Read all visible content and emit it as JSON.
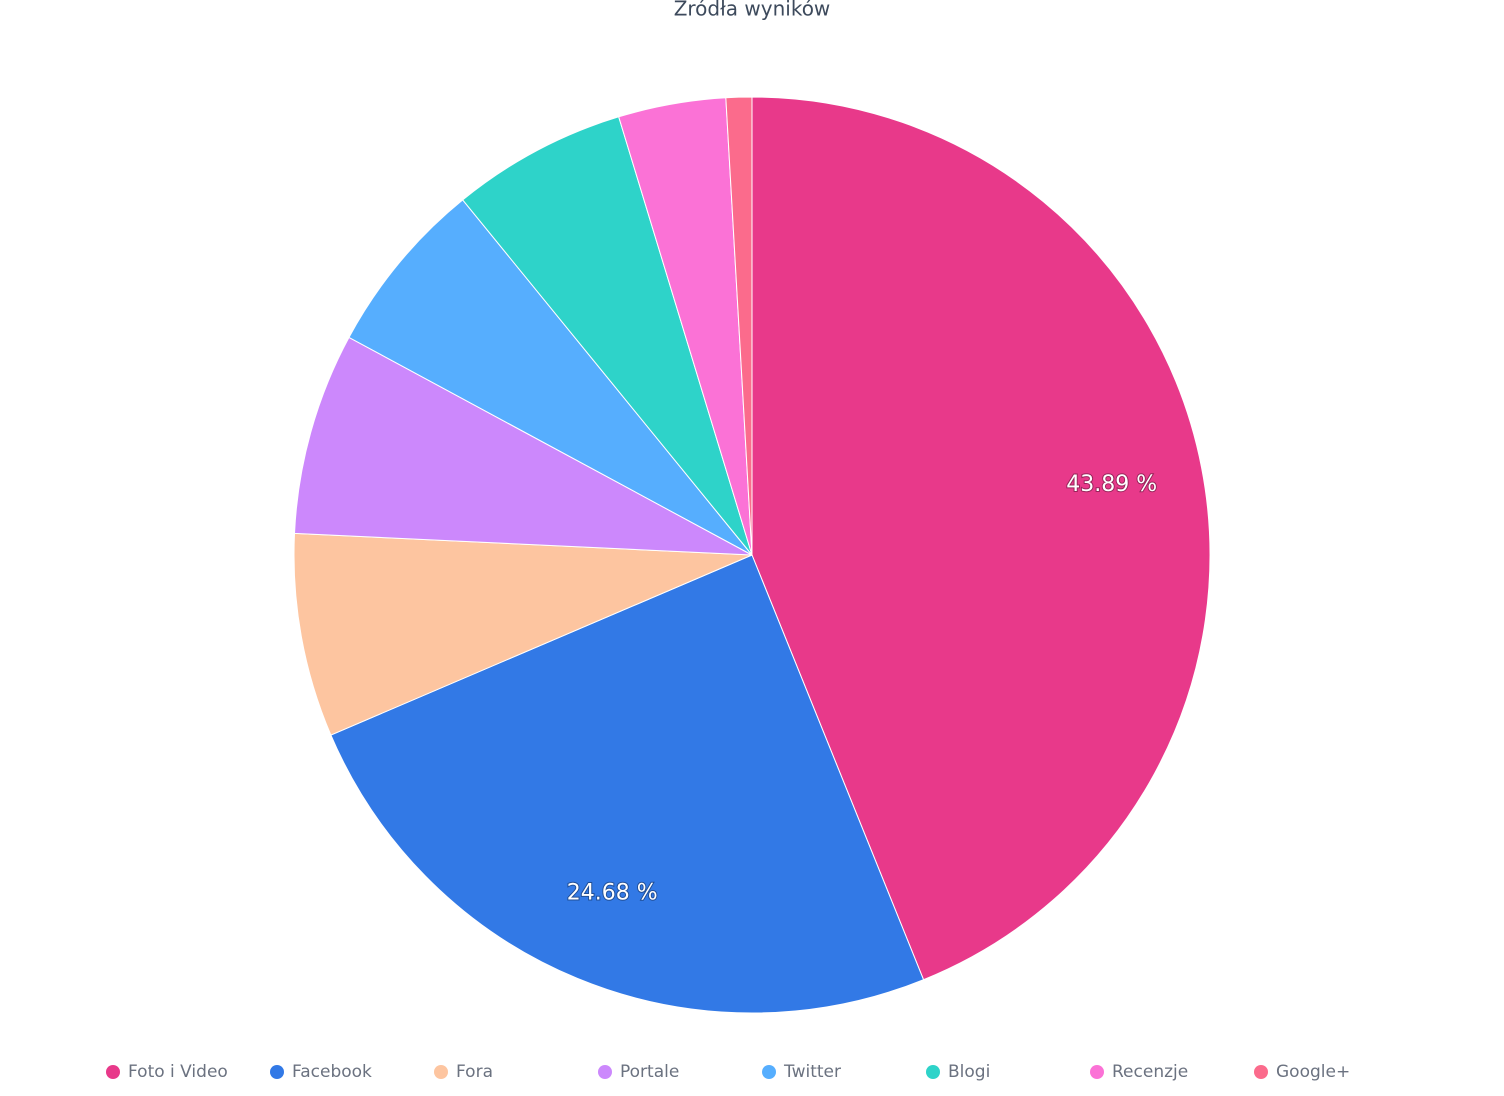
{
  "chart_data": {
    "type": "pie",
    "title": "Źródła wyników",
    "categories": [
      "Foto i Video",
      "Facebook",
      "Fora",
      "Portale",
      "Twitter",
      "Blogi",
      "Recenzje",
      "Google+"
    ],
    "values": [
      43.89,
      24.68,
      7.18,
      7.13,
      6.24,
      6.18,
      3.79,
      0.91
    ],
    "value_labels": [
      "43.89 %",
      "24.68 %",
      null,
      null,
      null,
      null,
      null,
      null
    ],
    "colors": [
      "#e8398a",
      "#3279e6",
      "#fdc5a0",
      "#cc88fc",
      "#56aefe",
      "#2ed3c9",
      "#fb72d6",
      "#fb6b8c"
    ],
    "legend": "bottom"
  }
}
